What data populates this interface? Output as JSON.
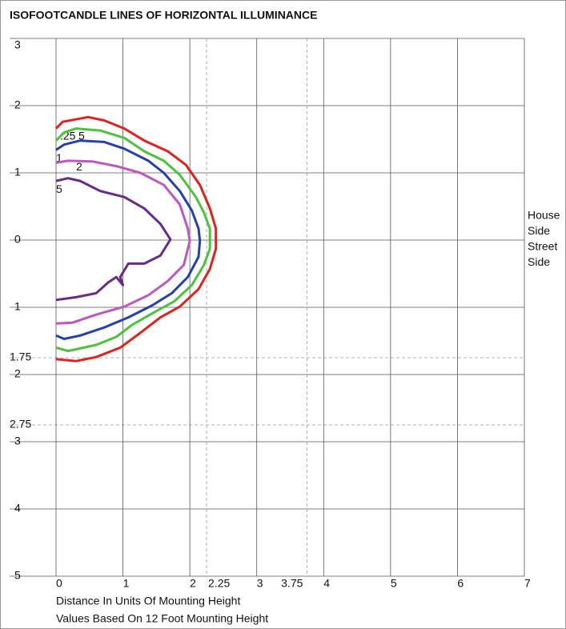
{
  "chart_data": {
    "type": "line",
    "title": "ISOFOOTCANDLE LINES OF HORIZONTAL ILLUMINANCE",
    "x_label": "Distance In Units Of Mounting Height",
    "note": "Values Based On 12 Foot Mounting Height",
    "annotations": [
      "House",
      "Side",
      "Street",
      "Side"
    ],
    "xlim": [
      0,
      7
    ],
    "ylim": [
      -5,
      3
    ],
    "xticks": [
      0,
      1,
      2,
      3,
      4,
      5,
      6,
      7
    ],
    "yticks": [
      3,
      2,
      1,
      0,
      {
        "value": -1,
        "label": "1"
      },
      {
        "value": -2,
        "label": "2"
      },
      {
        "value": -3,
        "label": "3"
      },
      {
        "value": -4,
        "label": "4"
      },
      {
        "value": -5,
        "label": "5"
      }
    ],
    "x_reference_lines": [
      {
        "value": 2.25,
        "label": "2.25"
      },
      {
        "value": 3.75,
        "label": "3.75"
      }
    ],
    "y_reference_lines": [
      {
        "value": -1.75,
        "label": "1.75"
      },
      {
        "value": -2.75,
        "label": "2.75"
      }
    ],
    "grid": true,
    "series": [
      {
        "name": ".25",
        "color": "#e5201c",
        "x": [
          0,
          0.1,
          0.48,
          0.72,
          1.02,
          1.32,
          1.67,
          1.94,
          2.15,
          2.3,
          2.39,
          2.39,
          2.3,
          2.13,
          1.85,
          1.56,
          1.26,
          0.96,
          0.6,
          0.3,
          0
        ],
        "values": [
          1.66,
          1.76,
          1.83,
          1.78,
          1.66,
          1.48,
          1.32,
          1.12,
          0.82,
          0.47,
          0.17,
          -0.13,
          -0.43,
          -0.73,
          -0.99,
          -1.15,
          -1.38,
          -1.6,
          -1.74,
          -1.8,
          -1.77
        ]
      },
      {
        "name": "5",
        "color": "#4cc33a",
        "x": [
          0,
          0.12,
          0.3,
          0.66,
          1.02,
          1.32,
          1.61,
          1.85,
          2.09,
          2.21,
          2.3,
          2.3,
          2.21,
          2.03,
          1.77,
          1.44,
          1.14,
          0.9,
          0.6,
          0.18,
          0
        ],
        "values": [
          1.48,
          1.6,
          1.66,
          1.63,
          1.52,
          1.32,
          1.18,
          0.97,
          0.64,
          0.41,
          0.17,
          -0.13,
          -0.37,
          -0.67,
          -0.91,
          -1.09,
          -1.26,
          -1.44,
          -1.56,
          -1.65,
          -1.6
        ]
      },
      {
        "name": "1",
        "color": "#2440b0",
        "x": [
          0,
          0.12,
          0.36,
          0.72,
          1.02,
          1.38,
          1.61,
          1.85,
          2.03,
          2.13,
          2.15,
          2.13,
          1.97,
          1.73,
          1.44,
          1.08,
          0.72,
          0.36,
          0.12,
          0
        ],
        "values": [
          1.34,
          1.42,
          1.48,
          1.46,
          1.36,
          1.18,
          1.0,
          0.73,
          0.44,
          0.17,
          -0.01,
          -0.25,
          -0.55,
          -0.79,
          -0.97,
          -1.15,
          -1.3,
          -1.42,
          -1.47,
          -1.42
        ]
      },
      {
        "name": "2",
        "color": "#c057c0",
        "x": [
          0,
          0.18,
          0.54,
          0.9,
          1.26,
          1.61,
          1.85,
          1.97,
          2.0,
          1.91,
          1.67,
          1.38,
          1.02,
          0.6,
          0.24,
          0
        ],
        "values": [
          1.15,
          1.18,
          1.17,
          1.1,
          1.0,
          0.82,
          0.53,
          0.17,
          -0.01,
          -0.37,
          -0.61,
          -0.82,
          -0.99,
          -1.11,
          -1.23,
          -1.24
        ]
      },
      {
        "name": "5",
        "color": "#6a2a8a",
        "x": [
          0,
          0.18,
          0.36,
          0.66,
          1.02,
          1.32,
          1.56,
          1.71,
          1.56,
          1.32,
          1.08,
          0.96,
          1.0,
          0.9,
          0.78,
          0.6,
          0.3,
          0
        ],
        "values": [
          0.88,
          0.92,
          0.88,
          0.73,
          0.64,
          0.47,
          0.24,
          0.01,
          -0.23,
          -0.35,
          -0.35,
          -0.55,
          -0.67,
          -0.55,
          -0.63,
          -0.79,
          -0.85,
          -0.89
        ]
      }
    ]
  }
}
